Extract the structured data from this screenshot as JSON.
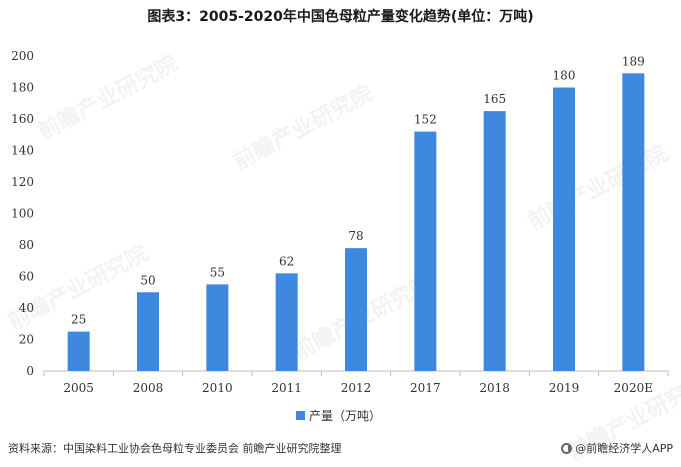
{
  "title": "图表3：2005-2020年中国色母粒产量变化趋势(单位：万吨)",
  "source": "资料来源：中国染料工业协会色母粒专业委员会 前瞻产业研究院整理",
  "brand": "@前瞻经济学人APP",
  "watermark": "前瞻产业研究院",
  "colors": {
    "bar": "#3f88e0",
    "axis": "#bfbfbf"
  },
  "chart_data": {
    "type": "bar",
    "categories": [
      "2005",
      "2008",
      "2010",
      "2011",
      "2012",
      "2017",
      "2018",
      "2019",
      "2020E"
    ],
    "series": [
      {
        "name": "产量（万吨）",
        "values": [
          25,
          50,
          55,
          62,
          78,
          152,
          165,
          180,
          189
        ]
      }
    ],
    "ylim": [
      0,
      200
    ],
    "yticks": [
      0,
      20,
      40,
      60,
      80,
      100,
      120,
      140,
      160,
      180,
      200
    ],
    "grid": false,
    "legend": "bottom-center"
  }
}
